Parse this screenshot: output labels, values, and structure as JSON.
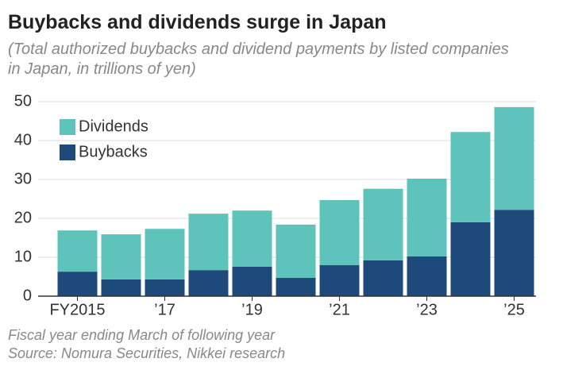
{
  "chart_data": {
    "type": "stacked_bar",
    "title": "Buybacks and dividends surge in Japan",
    "subtitle": "(Total authorized buybacks and dividend payments by listed companies in Japan, in trillions of yen)",
    "note": "Fiscal year ending March of following year",
    "source": "Source: Nomura Securities, Nikkei research",
    "categories": [
      "FY2015",
      null,
      "’17",
      null,
      "’19",
      null,
      "’21",
      null,
      "’23",
      null,
      "’25"
    ],
    "series": [
      {
        "name": "Buybacks",
        "color": "#1d4a7a",
        "values": [
          6.3,
          4.3,
          4.3,
          6.7,
          7.6,
          4.7,
          8.0,
          9.2,
          10.2,
          19.0,
          22.2
        ]
      },
      {
        "name": "Dividends",
        "color": "#5ec4bb",
        "values": [
          10.6,
          11.6,
          13.0,
          14.5,
          14.4,
          13.7,
          16.7,
          18.4,
          20.0,
          23.2,
          26.4
        ]
      }
    ],
    "ylim": [
      0,
      50
    ],
    "yticks": [
      0,
      10,
      20,
      30,
      40,
      50
    ],
    "grid": true,
    "legend": "top-left"
  }
}
